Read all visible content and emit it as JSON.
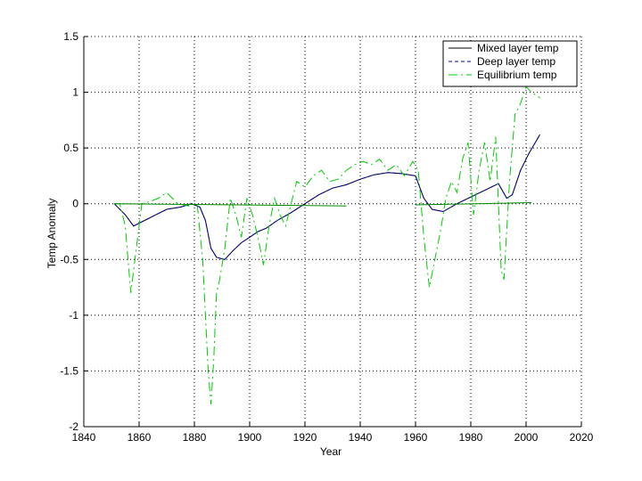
{
  "chart_data": {
    "type": "line",
    "title": "",
    "xlabel": "Year",
    "ylabel": "Temp Anomaly",
    "xlim": [
      1840,
      2020
    ],
    "ylim": [
      -2,
      1.5
    ],
    "xticks": [
      1840,
      1860,
      1880,
      1900,
      1920,
      1940,
      1960,
      1980,
      2000,
      2020
    ],
    "yticks": [
      -2,
      -1.5,
      -1,
      -0.5,
      0,
      0.5,
      1,
      1.5
    ],
    "xtick_labels": [
      "1840",
      "1860",
      "1880",
      "1900",
      "1920",
      "1940",
      "1960",
      "1980",
      "2000",
      "2020"
    ],
    "ytick_labels": [
      "-2",
      "-1.5",
      "-1",
      "-0.5",
      "0",
      "0.5",
      "1",
      "1.5"
    ],
    "grid": true,
    "legend_position": "top-right",
    "series": [
      {
        "name": "Mixed layer temp",
        "color": "#000000",
        "dash": "none",
        "x": [
          1851,
          1855,
          1858,
          1862,
          1866,
          1870,
          1875,
          1879,
          1882,
          1884,
          1886,
          1888,
          1891,
          1894,
          1897,
          1900,
          1903,
          1906,
          1910,
          1915,
          1920,
          1925,
          1930,
          1935,
          1940,
          1945,
          1950,
          1955,
          1960,
          1963,
          1966,
          1970,
          1975,
          1980,
          1985,
          1990,
          1993,
          1995,
          1998,
          2001,
          2005
        ],
        "y": [
          0.0,
          -0.1,
          -0.2,
          -0.15,
          -0.1,
          -0.05,
          -0.03,
          0.0,
          -0.03,
          -0.15,
          -0.4,
          -0.48,
          -0.5,
          -0.42,
          -0.35,
          -0.3,
          -0.25,
          -0.22,
          -0.15,
          -0.08,
          0.0,
          0.08,
          0.14,
          0.17,
          0.22,
          0.26,
          0.28,
          0.27,
          0.25,
          0.05,
          -0.05,
          -0.07,
          0.0,
          0.06,
          0.12,
          0.18,
          0.05,
          0.08,
          0.3,
          0.45,
          0.62
        ]
      },
      {
        "name": "Deep layer temp",
        "color": "#0000cc",
        "dash": "4 3",
        "x": [
          1851,
          1855,
          1858,
          1862,
          1866,
          1870,
          1875,
          1879,
          1882,
          1884,
          1886,
          1888,
          1891,
          1894,
          1897,
          1900,
          1903,
          1906,
          1910,
          1915,
          1920,
          1925,
          1930,
          1935,
          1940,
          1945,
          1950,
          1955,
          1960,
          1963,
          1966,
          1970,
          1975,
          1980,
          1985,
          1990,
          1993,
          1995,
          1998,
          2001,
          2005
        ],
        "y": [
          0.0,
          -0.1,
          -0.2,
          -0.15,
          -0.1,
          -0.05,
          -0.03,
          0.0,
          -0.03,
          -0.15,
          -0.4,
          -0.48,
          -0.5,
          -0.42,
          -0.35,
          -0.3,
          -0.25,
          -0.22,
          -0.15,
          -0.08,
          0.0,
          0.08,
          0.14,
          0.17,
          0.22,
          0.26,
          0.28,
          0.27,
          0.25,
          0.05,
          -0.05,
          -0.07,
          0.0,
          0.06,
          0.12,
          0.18,
          0.05,
          0.08,
          0.3,
          0.45,
          0.62
        ]
      },
      {
        "name": "Equilibrium temp",
        "color": "#00cc00",
        "dash": "10 4 2 4",
        "x": [
          1851,
          1853,
          1855,
          1857,
          1859,
          1861,
          1864,
          1867,
          1870,
          1874,
          1878,
          1881,
          1883,
          1884,
          1885,
          1886,
          1887,
          1888,
          1889,
          1891,
          1893,
          1895,
          1897,
          1899,
          1901,
          1903,
          1905,
          1907,
          1909,
          1911,
          1913,
          1915,
          1917,
          1920,
          1923,
          1926,
          1929,
          1932,
          1935,
          1938,
          1941,
          1944,
          1947,
          1950,
          1953,
          1956,
          1959,
          1961,
          1963,
          1965,
          1967,
          1969,
          1971,
          1973,
          1975,
          1977,
          1979,
          1981,
          1983,
          1985,
          1987,
          1989,
          1991,
          1992,
          1994,
          1996,
          1998,
          2000,
          2002,
          2005
        ],
        "y": [
          0.0,
          0.0,
          -0.2,
          -0.8,
          -0.4,
          0.0,
          0.02,
          0.05,
          0.1,
          0.0,
          -0.02,
          0.0,
          -0.5,
          -1.0,
          -1.5,
          -1.8,
          -1.4,
          -0.8,
          -0.7,
          -0.4,
          0.05,
          -0.1,
          -0.3,
          0.05,
          -0.1,
          -0.3,
          -0.55,
          -0.2,
          0.05,
          -0.1,
          -0.2,
          0.0,
          0.2,
          0.15,
          0.25,
          0.3,
          0.2,
          0.22,
          0.3,
          0.35,
          0.38,
          0.35,
          0.4,
          0.3,
          0.35,
          0.25,
          0.38,
          0.3,
          -0.3,
          -0.75,
          -0.5,
          -0.25,
          0.05,
          0.2,
          0.1,
          0.4,
          0.55,
          -0.1,
          0.3,
          0.55,
          0.2,
          0.6,
          -0.6,
          -0.68,
          0.2,
          0.8,
          0.9,
          1.05,
          1.0,
          0.95
        ]
      },
      {
        "name": "",
        "color": "#008800",
        "dash": "none",
        "x": [
          1851,
          1935
        ],
        "y": [
          0.0,
          -0.02
        ]
      },
      {
        "name": "",
        "color": "#008800",
        "dash": "none",
        "x": [
          1960,
          2002
        ],
        "y": [
          -0.01,
          0.01
        ]
      }
    ]
  }
}
